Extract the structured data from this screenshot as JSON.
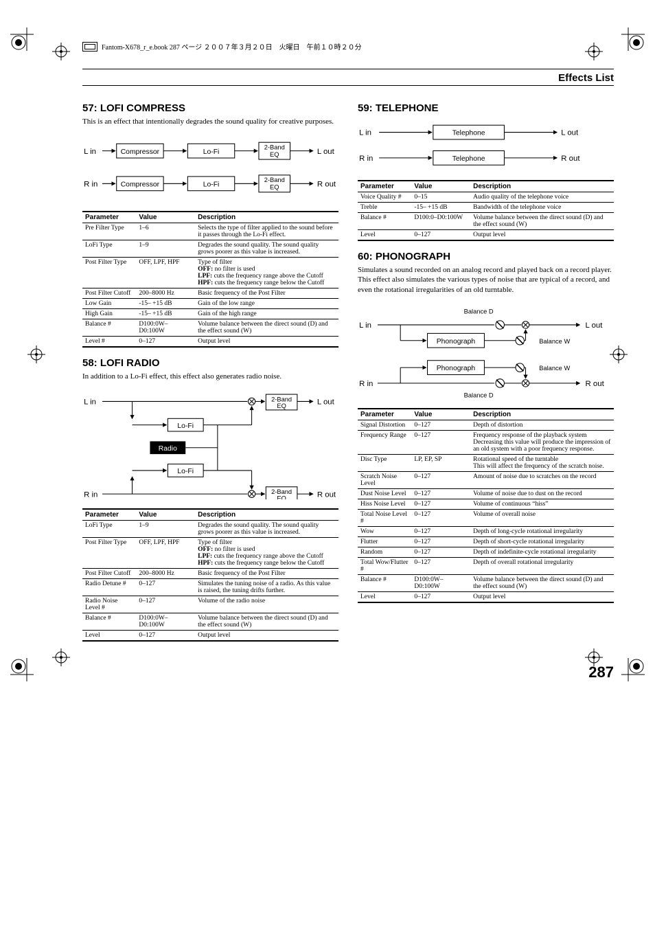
{
  "header": {
    "book_line": "Fantom-X678_r_e.book 287 ページ ２００７年３月２０日　火曜日　午前１０時２０分",
    "section_title": "Effects List",
    "page_number": "287"
  },
  "effects": {
    "e57": {
      "title": "57: LOFI COMPRESS",
      "desc": "This is an effect that intentionally degrades the sound quality for creative purposes.",
      "diagram": {
        "l_in": "L in",
        "r_in": "R in",
        "l_out": "L out",
        "r_out": "R out",
        "compressor": "Compressor",
        "lofi": "Lo-Fi",
        "eq": "2-Band\nEQ"
      },
      "table_headers": [
        "Parameter",
        "Value",
        "Description"
      ],
      "rows": [
        {
          "p": "Pre Filter Type",
          "v": "1–6",
          "d": "Selects the type of filter applied to the sound before it passes through the Lo-Fi effect."
        },
        {
          "p": "LoFi Type",
          "v": "1–9",
          "d": "Degrades the sound quality. The sound quality grows poorer as this value is increased."
        },
        {
          "p": "Post Filter Type",
          "v": "OFF, LPF, HPF",
          "d": "Type of filter\n<b>OFF:</b> no filter is used\n<b>LPF:</b> cuts the frequency range above the Cutoff\n<b>HPF:</b> cuts the frequency range below the Cutoff"
        },
        {
          "p": "Post Filter Cutoff",
          "v": "200–8000 Hz",
          "d": "Basic frequency of the Post Filter"
        },
        {
          "p": "Low Gain",
          "v": "-15– +15 dB",
          "d": "Gain of the low range"
        },
        {
          "p": "High Gain",
          "v": "-15– +15 dB",
          "d": "Gain of the high range"
        },
        {
          "p": "Balance #",
          "v": "D100:0W–D0:100W",
          "d": "Volume balance between the direct sound (D) and the effect sound (W)"
        },
        {
          "p": "Level #",
          "v": "0–127",
          "d": "Output level"
        }
      ]
    },
    "e58": {
      "title": "58: LOFI RADIO",
      "desc": "In addition to a Lo-Fi effect, this effect also generates radio noise.",
      "diagram": {
        "l_in": "L in",
        "r_in": "R in",
        "l_out": "L out",
        "r_out": "R out",
        "radio": "Radio",
        "lofi": "Lo-Fi",
        "eq": "2-Band\nEQ"
      },
      "table_headers": [
        "Parameter",
        "Value",
        "Description"
      ],
      "rows": [
        {
          "p": "LoFi Type",
          "v": "1–9",
          "d": "Degrades the sound quality. The sound quality grows poorer as this value is increased."
        },
        {
          "p": "Post Filter Type",
          "v": "OFF, LPF, HPF",
          "d": "Type of filter\n<b>OFF:</b> no filter is used\n<b>LPF:</b> cuts the frequency range above the Cutoff\n<b>HPF:</b> cuts the frequency range below the Cutoff"
        },
        {
          "p": "Post Filter Cutoff",
          "v": "200–8000 Hz",
          "d": "Basic frequency of the Post Filter"
        },
        {
          "p": "Radio Detune #",
          "v": "0–127",
          "d": "Simulates the tuning noise of a radio. As this value is raised, the tuning drifts further."
        },
        {
          "p": "Radio Noise Level #",
          "v": "0–127",
          "d": "Volume of the radio noise"
        },
        {
          "p": "Balance #",
          "v": "D100:0W–D0:100W",
          "d": "Volume balance between the direct sound (D) and the effect sound (W)"
        },
        {
          "p": "Level",
          "v": "0–127",
          "d": "Output level"
        }
      ]
    },
    "e59": {
      "title": "59: TELEPHONE",
      "diagram": {
        "l_in": "L in",
        "r_in": "R in",
        "l_out": "L out",
        "r_out": "R out",
        "telephone": "Telephone"
      },
      "table_headers": [
        "Parameter",
        "Value",
        "Description"
      ],
      "rows": [
        {
          "p": "Voice Quality #",
          "v": "0–15",
          "d": "Audio quality of the telephone voice"
        },
        {
          "p": "Treble",
          "v": "-15– +15 dB",
          "d": "Bandwidth of the telephone voice"
        },
        {
          "p": "Balance #",
          "v": "D100:0–D0:100W",
          "d": "Volume balance between the direct sound (D) and the effect sound (W)"
        },
        {
          "p": "Level",
          "v": "0–127",
          "d": "Output level"
        }
      ]
    },
    "e60": {
      "title": "60: PHONOGRAPH",
      "desc": "Simulates a sound recorded on an analog record and played back on a record player. This effect also simulates the various types of noise that are typical of a record, and even the rotational irregularities of an old turntable.",
      "diagram": {
        "l_in": "L in",
        "r_in": "R in",
        "l_out": "L out",
        "r_out": "R out",
        "phonograph": "Phonograph",
        "balance_d": "Balance D",
        "balance_w": "Balance W"
      },
      "table_headers": [
        "Parameter",
        "Value",
        "Description"
      ],
      "rows": [
        {
          "p": "Signal Distortion",
          "v": "0–127",
          "d": "Depth of distortion"
        },
        {
          "p": "Frequency Range",
          "v": "0–127",
          "d": "Frequency response of the playback system\nDecreasing this value will produce the impression of an old system with a poor frequency response."
        },
        {
          "p": "Disc Type",
          "v": "LP, EP, SP",
          "d": "Rotational speed of the turntable\nThis will affect the frequency of the scratch noise."
        },
        {
          "p": "Scratch Noise Level",
          "v": "0–127",
          "d": "Amount of noise due to scratches on the record"
        },
        {
          "p": "Dust Noise Level",
          "v": "0–127",
          "d": "Volume of noise due to dust on the record"
        },
        {
          "p": "Hiss Noise Level",
          "v": "0–127",
          "d": "Volume of continuous “hiss”"
        },
        {
          "p": "Total Noise Level #",
          "v": "0–127",
          "d": "Volume of overall noise"
        },
        {
          "p": "Wow",
          "v": "0–127",
          "d": "Depth of long-cycle rotational irregularity"
        },
        {
          "p": "Flutter",
          "v": "0–127",
          "d": "Depth of short-cycle rotational irregularity"
        },
        {
          "p": "Random",
          "v": "0–127",
          "d": "Depth of indefinite-cycle rotational irregularity"
        },
        {
          "p": "Total Wow/Flutter #",
          "v": "0–127",
          "d": "Depth of overall rotational irregularity"
        },
        {
          "p": "Balance #",
          "v": "D100:0W–D0:100W",
          "d": "Volume balance between the direct sound (D) and the effect sound (W)"
        },
        {
          "p": "Level",
          "v": "0–127",
          "d": "Output level"
        }
      ]
    }
  }
}
